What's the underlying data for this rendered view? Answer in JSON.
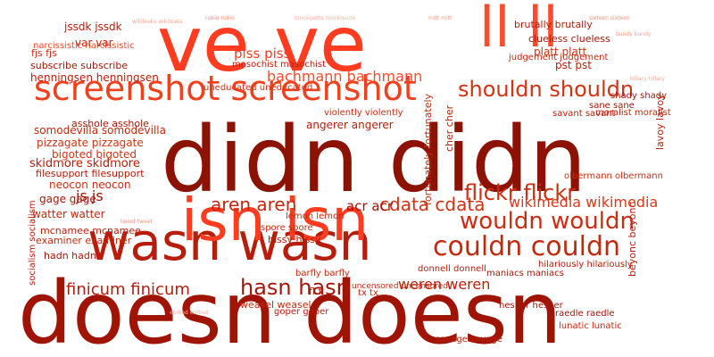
{
  "words": [
    {
      "text": "doesn doesn",
      "color": "#a01405"
    },
    {
      "text": "didn didn",
      "color": "#8c1203"
    },
    {
      "text": "wasn wasn",
      "color": "#b71d0a"
    },
    {
      "text": "isn isn",
      "color": "#ff3b20"
    },
    {
      "text": "ve ve",
      "color": "#ff3b20"
    },
    {
      "text": "ll ll",
      "color": "#ff4a2b"
    },
    {
      "text": "screenshot screenshot",
      "color": "#f0401e"
    },
    {
      "text": "couldn couldn",
      "color": "#c22a10"
    },
    {
      "text": "wouldn wouldn",
      "color": "#cc2d12"
    },
    {
      "text": "flickr flickr",
      "color": "#cf2e12"
    },
    {
      "text": "shouldn shouldn",
      "color": "#d23312"
    },
    {
      "text": "aren aren",
      "color": "#c02a10"
    },
    {
      "text": "cdata cdata",
      "color": "#d13213"
    },
    {
      "text": "hasn hasn",
      "color": "#a3180a"
    },
    {
      "text": "finicum finicum",
      "color": "#b51e0b"
    },
    {
      "text": "weren weren",
      "color": "#b81f0b"
    },
    {
      "text": "js js",
      "color": "#a01405"
    },
    {
      "text": "wikimedia wikimedia",
      "color": "#d7391a"
    },
    {
      "text": "bachmann bachmann",
      "color": "#ff4a2b"
    },
    {
      "text": "piss piss",
      "color": "#ff3b20"
    },
    {
      "text": "somodevilla somodevilla",
      "color": "#c22a10"
    },
    {
      "text": "pizzagate pizzagate",
      "color": "#d23312"
    },
    {
      "text": "skidmore skidmore",
      "color": "#b71d0a"
    },
    {
      "text": "neocon neocon",
      "color": "#cc2d12"
    },
    {
      "text": "henningsen henningsen",
      "color": "#b81f0b"
    },
    {
      "text": "subscribe subscribe",
      "color": "#a3180a"
    },
    {
      "text": "filesupport filesupport",
      "color": "#b71d0a"
    },
    {
      "text": "bigoted bigoted",
      "color": "#d23312"
    },
    {
      "text": "gage gage",
      "color": "#a3180a"
    },
    {
      "text": "watter watter",
      "color": "#c02a10"
    },
    {
      "text": "jssdk jssdk",
      "color": "#b71d0a"
    },
    {
      "text": "narcissistic narcissistic",
      "color": "#ff4a2b"
    },
    {
      "text": "var var",
      "color": "#c22a10"
    },
    {
      "text": "fjs fjs",
      "color": "#cc2d12"
    },
    {
      "text": "asshole asshole",
      "color": "#a3180a"
    },
    {
      "text": "mcnamee mcnamee",
      "color": "#b81f0b"
    },
    {
      "text": "examiner examiner",
      "color": "#c22a10"
    },
    {
      "text": "hadn hadn",
      "color": "#a3180a"
    },
    {
      "text": "socialism socialism",
      "color": "#b71d0a"
    },
    {
      "text": "platt platt",
      "color": "#d23312"
    },
    {
      "text": "pst pst",
      "color": "#b81f0b"
    },
    {
      "text": "brutally brutally",
      "color": "#b71d0a"
    },
    {
      "text": "clueless clueless",
      "color": "#a3180a"
    },
    {
      "text": "judgement judgement",
      "color": "#c22a10"
    },
    {
      "text": "masochist masochist",
      "color": "#b81f0b"
    },
    {
      "text": "acr acr",
      "color": "#a01405"
    },
    {
      "text": "angerer angerer",
      "color": "#b71d0a"
    },
    {
      "text": "violently violently",
      "color": "#cc2d12"
    },
    {
      "text": "uneducated uneducated",
      "color": "#d23312"
    },
    {
      "text": "lemon lemon",
      "color": "#c22a10"
    },
    {
      "text": "spore spore",
      "color": "#c02a10"
    },
    {
      "text": "hissy hissy",
      "color": "#b71d0a"
    },
    {
      "text": "fortunately fortunately",
      "color": "#c22a10"
    },
    {
      "text": "cher cher",
      "color": "#b71d0a"
    },
    {
      "text": "savant savant",
      "color": "#b81f0b"
    },
    {
      "text": "sane sane",
      "color": "#a3180a"
    },
    {
      "text": "shady shady",
      "color": "#a3180a"
    },
    {
      "text": "lavoy lavoy",
      "color": "#b71d0a"
    },
    {
      "text": "moralist moralist",
      "color": "#c22a10"
    },
    {
      "text": "olbermann olbermann",
      "color": "#cc2d12"
    },
    {
      "text": "donnell donnell",
      "color": "#b81f0b"
    },
    {
      "text": "uncensored uncensored",
      "color": "#c22a10"
    },
    {
      "text": "maniacs maniacs",
      "color": "#a3180a"
    },
    {
      "text": "hilariously hilariously",
      "color": "#b71d0a"
    },
    {
      "text": "barfly barfly",
      "color": "#c02a10"
    },
    {
      "text": "fl fl",
      "color": "#b71d0a"
    },
    {
      "text": "weasel weasel",
      "color": "#c22a10"
    },
    {
      "text": "goper goper",
      "color": "#b81f0b"
    },
    {
      "text": "hesher hesher",
      "color": "#a3180a"
    },
    {
      "text": "tx tx",
      "color": "#c22a10"
    },
    {
      "text": "beyonc beyonc",
      "color": "#b81f0b"
    },
    {
      "text": "raedle raedle",
      "color": "#a3180a"
    },
    {
      "text": "lunatic lunatic",
      "color": "#c22a10"
    },
    {
      "text": "savage savage",
      "color": "#b81f0b"
    },
    {
      "text": "wikileaks wikileaks",
      "color": "#ffa590"
    },
    {
      "text": "rubio rubio",
      "color": "#ff8f78"
    },
    {
      "text": "mitt mitt",
      "color": "#ff9d86"
    },
    {
      "text": "blockquote blockquote",
      "color": "#ffb3a1"
    },
    {
      "text": "sixteen sixteen",
      "color": "#ff8f78"
    },
    {
      "text": "bundy bundy",
      "color": "#ff9d86"
    },
    {
      "text": "hillary hillary",
      "color": "#ffa590"
    },
    {
      "text": "tweet tweet",
      "color": "#ff8f78"
    },
    {
      "text": "embed embed",
      "color": "#ffb3a1"
    }
  ]
}
